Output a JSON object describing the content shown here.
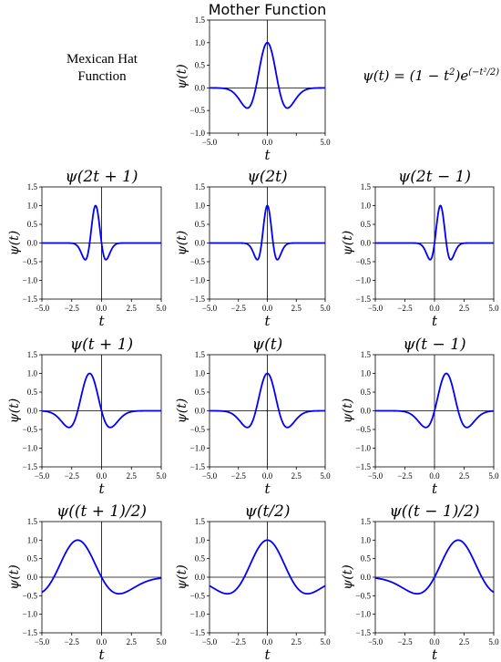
{
  "figure": {
    "side_label": "Mexican Hat Function",
    "formula": {
      "lhs": "ψ(t) = (1 − t",
      "pow": "2",
      "mid": ")e",
      "exp": "(−t²/2)"
    }
  },
  "style": {
    "curve_color": "#0000ff",
    "axis_color": "#000000"
  },
  "chart_data": [
    {
      "type": "line",
      "name": "mother",
      "title": "Mother Function",
      "xlabel": "t",
      "ylabel": "ψ(t)",
      "xlim": [
        -5,
        5
      ],
      "ylim": [
        -1.0,
        1.5
      ],
      "xticks": [
        "−5.0",
        "",
        "0.0",
        "",
        "5.0"
      ],
      "yticks": [
        "1.5",
        "1.0",
        "0.5",
        "0.0",
        "−0.5",
        "−1.0"
      ],
      "function": "(1 - t^2) * exp(-t^2 / 2)",
      "scale": 1,
      "shift": 0
    },
    {
      "type": "line",
      "name": "psi-2t-plus-1",
      "title": "ψ(2t + 1)",
      "xlabel": "t",
      "ylabel": "ψ(t)",
      "xlim": [
        -5,
        5
      ],
      "ylim": [
        -1.5,
        1.5
      ],
      "xticks": [
        "−5.0",
        "−2.5",
        "0.0",
        "2.5",
        "5.0"
      ],
      "yticks": [
        "1.5",
        "1.0",
        "0.5",
        "0.0",
        "−0.5",
        "−1.0",
        "−1.5"
      ],
      "scale": 2,
      "shift": 1
    },
    {
      "type": "line",
      "name": "psi-2t",
      "title": "ψ(2t)",
      "xlabel": "t",
      "ylabel": "ψ(t)",
      "xlim": [
        -5,
        5
      ],
      "ylim": [
        -1.5,
        1.5
      ],
      "xticks": [
        "−5.0",
        "−2.5",
        "0.0",
        "2.5",
        "5.0"
      ],
      "yticks": [
        "1.5",
        "1.0",
        "0.5",
        "0.0",
        "−0.5",
        "−1.0",
        "−1.5"
      ],
      "scale": 2,
      "shift": 0
    },
    {
      "type": "line",
      "name": "psi-2t-minus-1",
      "title": "ψ(2t − 1)",
      "xlabel": "t",
      "ylabel": "ψ(t)",
      "xlim": [
        -5,
        5
      ],
      "ylim": [
        -1.5,
        1.5
      ],
      "xticks": [
        "−5.0",
        "−2.5",
        "0.0",
        "2.5",
        "5.0"
      ],
      "yticks": [
        "1.5",
        "1.0",
        "0.5",
        "0.0",
        "−0.5",
        "−1.0",
        "−1.5"
      ],
      "scale": 2,
      "shift": -1
    },
    {
      "type": "line",
      "name": "psi-t-plus-1",
      "title": "ψ(t + 1)",
      "xlabel": "t",
      "ylabel": "ψ(t)",
      "xlim": [
        -5,
        5
      ],
      "ylim": [
        -1.5,
        1.5
      ],
      "xticks": [
        "−5.0",
        "−2.5",
        "0.0",
        "2.5",
        "5.0"
      ],
      "yticks": [
        "1.5",
        "1.0",
        "0.5",
        "0.0",
        "−0.5",
        "−1.0",
        "−1.5"
      ],
      "scale": 1,
      "shift": 1
    },
    {
      "type": "line",
      "name": "psi-t",
      "title": "ψ(t)",
      "xlabel": "t",
      "ylabel": "ψ(t)",
      "xlim": [
        -5,
        5
      ],
      "ylim": [
        -1.5,
        1.5
      ],
      "xticks": [
        "−5.0",
        "−2.5",
        "0.0",
        "2.5",
        "5.0"
      ],
      "yticks": [
        "1.5",
        "1.0",
        "0.5",
        "0.0",
        "−0.5",
        "−1.0",
        "−1.5"
      ],
      "scale": 1,
      "shift": 0
    },
    {
      "type": "line",
      "name": "psi-t-minus-1",
      "title": "ψ(t − 1)",
      "xlabel": "t",
      "ylabel": "ψ(t)",
      "xlim": [
        -5,
        5
      ],
      "ylim": [
        -1.5,
        1.5
      ],
      "xticks": [
        "−5.0",
        "−2.5",
        "0.0",
        "2.5",
        "5.0"
      ],
      "yticks": [
        "1.5",
        "1.0",
        "0.5",
        "0.0",
        "−0.5",
        "−1.0",
        "−1.5"
      ],
      "scale": 1,
      "shift": -1
    },
    {
      "type": "line",
      "name": "psi-half-t-plus-1",
      "title": "ψ((t + 1)/2)",
      "xlabel": "t",
      "ylabel": "ψ(t)",
      "xlim": [
        -5,
        5
      ],
      "ylim": [
        -1.5,
        1.5
      ],
      "xticks": [
        "−5.0",
        "−2.5",
        "0.0",
        "2.5",
        "5.0"
      ],
      "yticks": [
        "1.5",
        "1.0",
        "0.5",
        "0.0",
        "−0.5",
        "−1.0",
        "−1.5"
      ],
      "scale": 0.5,
      "shift": 1
    },
    {
      "type": "line",
      "name": "psi-half-t",
      "title": "ψ(t/2)",
      "xlabel": "t",
      "ylabel": "ψ(t)",
      "xlim": [
        -5,
        5
      ],
      "ylim": [
        -1.5,
        1.5
      ],
      "xticks": [
        "−5.0",
        "−2.5",
        "0.0",
        "2.5",
        "5.0"
      ],
      "yticks": [
        "1.5",
        "1.0",
        "0.5",
        "0.0",
        "−0.5",
        "−1.0",
        "−1.5"
      ],
      "scale": 0.5,
      "shift": 0
    },
    {
      "type": "line",
      "name": "psi-half-t-minus-1",
      "title": "ψ((t − 1)/2)",
      "xlabel": "t",
      "ylabel": "ψ(t)",
      "xlim": [
        -5,
        5
      ],
      "ylim": [
        -1.5,
        1.5
      ],
      "xticks": [
        "−5.0",
        "−2.5",
        "0.0",
        "2.5",
        "5.0"
      ],
      "yticks": [
        "1.5",
        "1.0",
        "0.5",
        "0.0",
        "−0.5",
        "−1.0",
        "−1.5"
      ],
      "scale": 0.5,
      "shift": -1
    }
  ]
}
